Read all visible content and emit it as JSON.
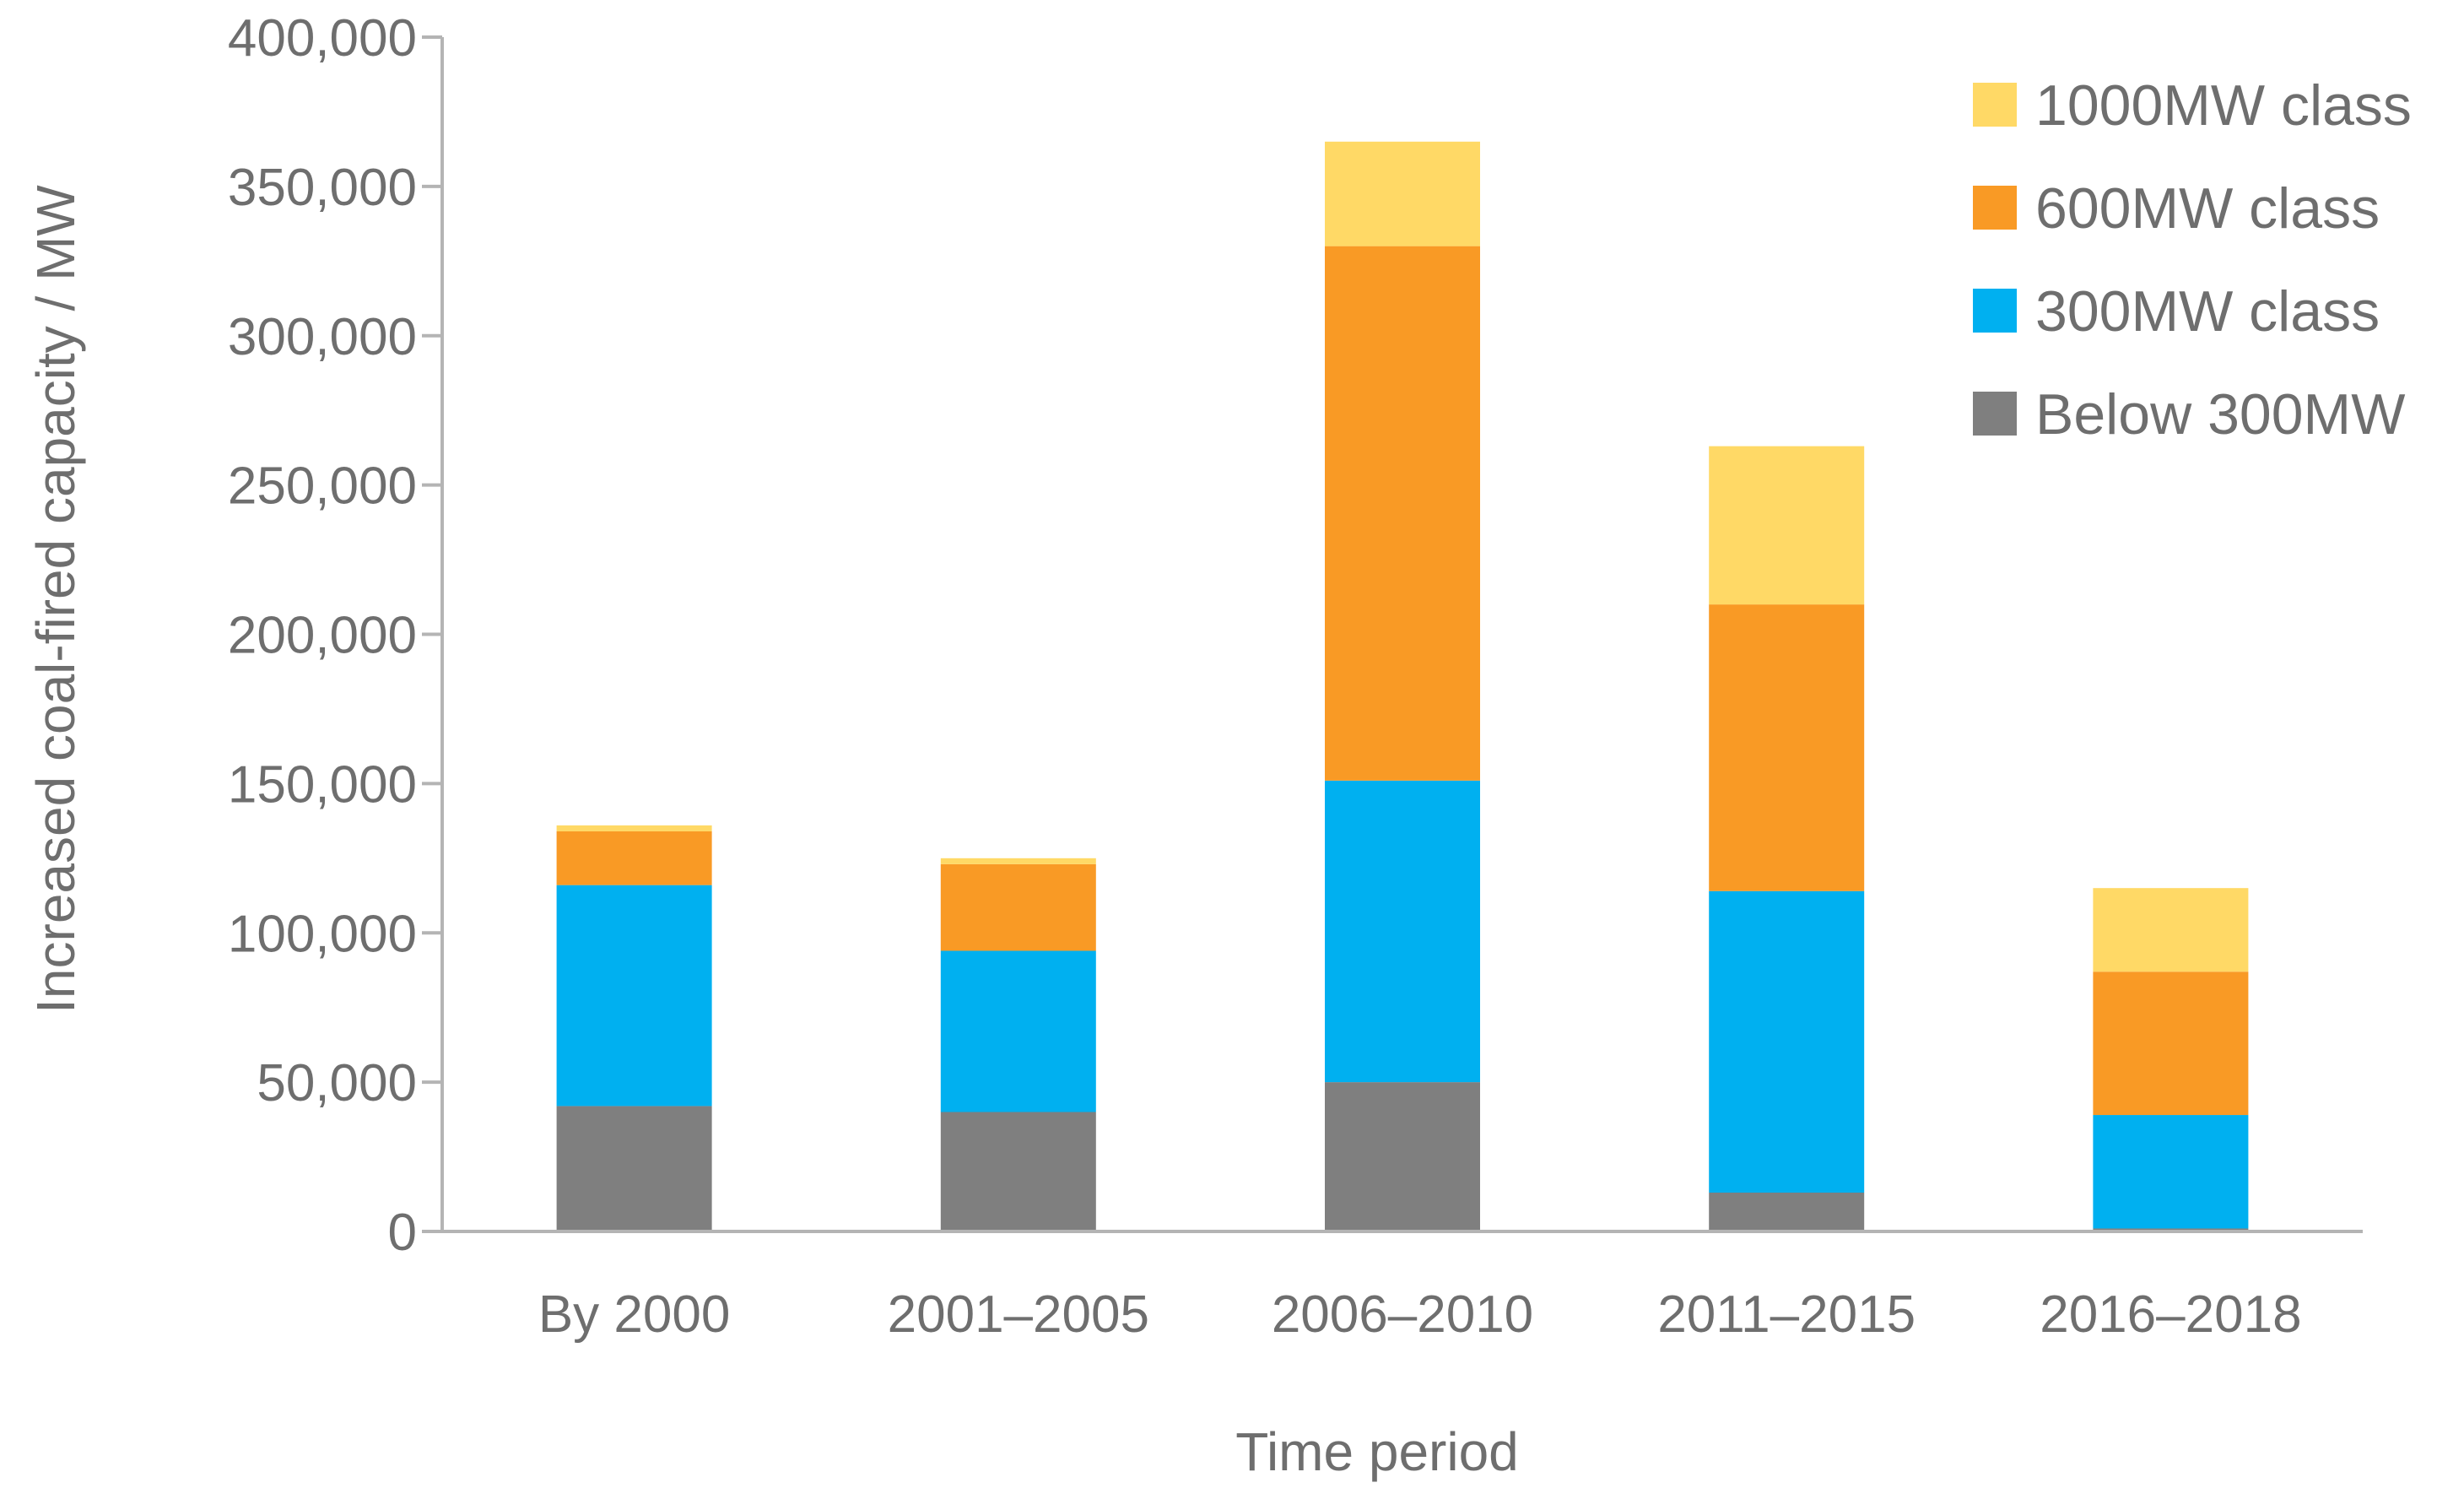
{
  "chart_data": {
    "type": "bar",
    "stacked": true,
    "title": "",
    "xlabel": "Time period",
    "ylabel": "Increased coal-fired capacity / MW",
    "ylim": [
      0,
      400000
    ],
    "yticks": [
      0,
      50000,
      100000,
      150000,
      200000,
      250000,
      300000,
      350000,
      400000
    ],
    "ytick_labels": [
      "0",
      "50,000",
      "100,000",
      "150,000",
      "200,000",
      "250,000",
      "300,000",
      "350,000",
      "400,000"
    ],
    "grid": false,
    "legend_position": "top-right",
    "categories": [
      "By 2000",
      "2001–2005",
      "2006–2010",
      "2011–2015",
      "2016–2018"
    ],
    "series": [
      {
        "name": "Below 300MW",
        "color": "#7f7f7f",
        "values": [
          42000,
          40000,
          50000,
          13000,
          1000
        ]
      },
      {
        "name": "300MW class",
        "color": "#00b0f0",
        "values": [
          74000,
          54000,
          101000,
          101000,
          38000
        ]
      },
      {
        "name": "600MW class",
        "color": "#f99a25",
        "values": [
          18000,
          29000,
          179000,
          96000,
          48000
        ]
      },
      {
        "name": "1000MW class",
        "color": "#ffd966",
        "values": [
          2000,
          2000,
          35000,
          53000,
          28000
        ]
      }
    ],
    "legend_order": [
      "1000MW class",
      "600MW class",
      "300MW class",
      "Below 300MW"
    ]
  }
}
